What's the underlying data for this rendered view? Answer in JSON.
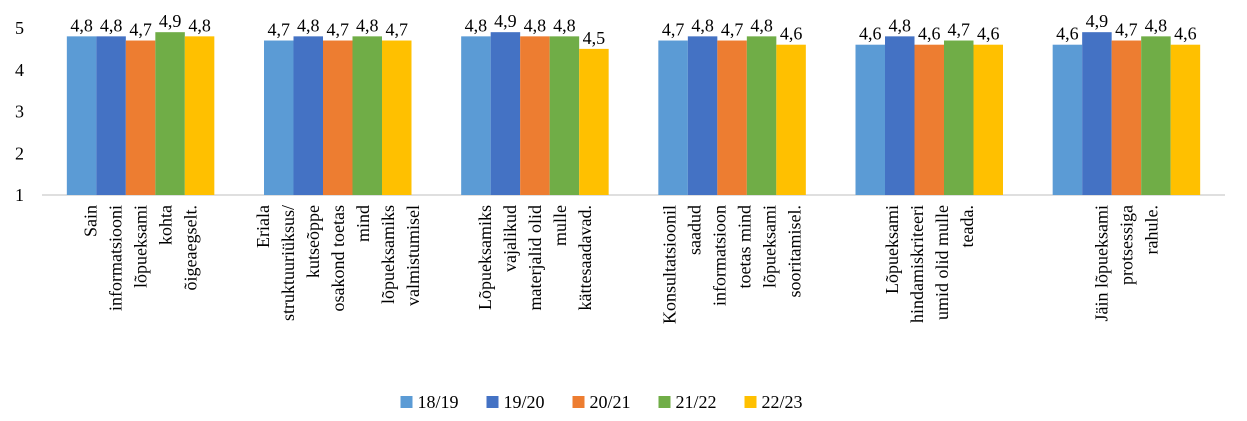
{
  "chart_data": {
    "type": "bar",
    "title": "",
    "xlabel": "",
    "ylabel": "",
    "ylim": [
      1,
      5
    ],
    "yticks": [
      "1",
      "2",
      "3",
      "4",
      "5"
    ],
    "gridlines": false,
    "legend_position": "bottom",
    "categories": [
      [
        "Sain",
        "informatsiooni",
        "lõpueksami",
        "kohta",
        "õigeaegselt."
      ],
      [
        "Eriala",
        "struktuuriüksus/",
        "kutseõppe",
        "osakond toetas",
        "mind",
        "lõpueksamiks",
        "valmistumisel"
      ],
      [
        "Lõpueksamiks",
        "vajalikud",
        "materjalid olid",
        "mulle",
        "kättesaadavad."
      ],
      [
        "Konsultatsioonil",
        "saadud",
        "informatsioon",
        "toetas mind",
        "lõpueksami",
        "sooritamisel."
      ],
      [
        "Lõpueksami",
        "hindamiskriteeri",
        "umid olid mulle",
        "teada."
      ],
      [
        "Jäin lõpueksami",
        "protsessiga",
        "rahule."
      ]
    ],
    "series": [
      {
        "name": "18/19",
        "color": "#5B9BD5",
        "values": [
          4.8,
          4.7,
          4.8,
          4.7,
          4.6,
          4.6
        ],
        "labels": [
          "4,8",
          "4,7",
          "4,8",
          "4,7",
          "4,6",
          "4,6"
        ]
      },
      {
        "name": "19/20",
        "color": "#4472C4",
        "values": [
          4.8,
          4.8,
          4.9,
          4.8,
          4.8,
          4.9
        ],
        "labels": [
          "4,8",
          "4,8",
          "4,9",
          "4,8",
          "4,8",
          "4,9"
        ]
      },
      {
        "name": "20/21",
        "color": "#ED7D31",
        "values": [
          4.7,
          4.7,
          4.8,
          4.7,
          4.6,
          4.7
        ],
        "labels": [
          "4,7",
          "4,7",
          "4,8",
          "4,7",
          "4,6",
          "4,7"
        ]
      },
      {
        "name": "21/22",
        "color": "#70AD47",
        "values": [
          4.9,
          4.8,
          4.8,
          4.8,
          4.7,
          4.8
        ],
        "labels": [
          "4,9",
          "4,8",
          "4,8",
          "4,8",
          "4,7",
          "4,8"
        ]
      },
      {
        "name": "22/23",
        "color": "#FFC000",
        "values": [
          4.8,
          4.7,
          4.5,
          4.6,
          4.6,
          4.6
        ],
        "labels": [
          "4,8",
          "4,7",
          "4,5",
          "4,6",
          "4,6",
          "4,6"
        ]
      }
    ]
  }
}
